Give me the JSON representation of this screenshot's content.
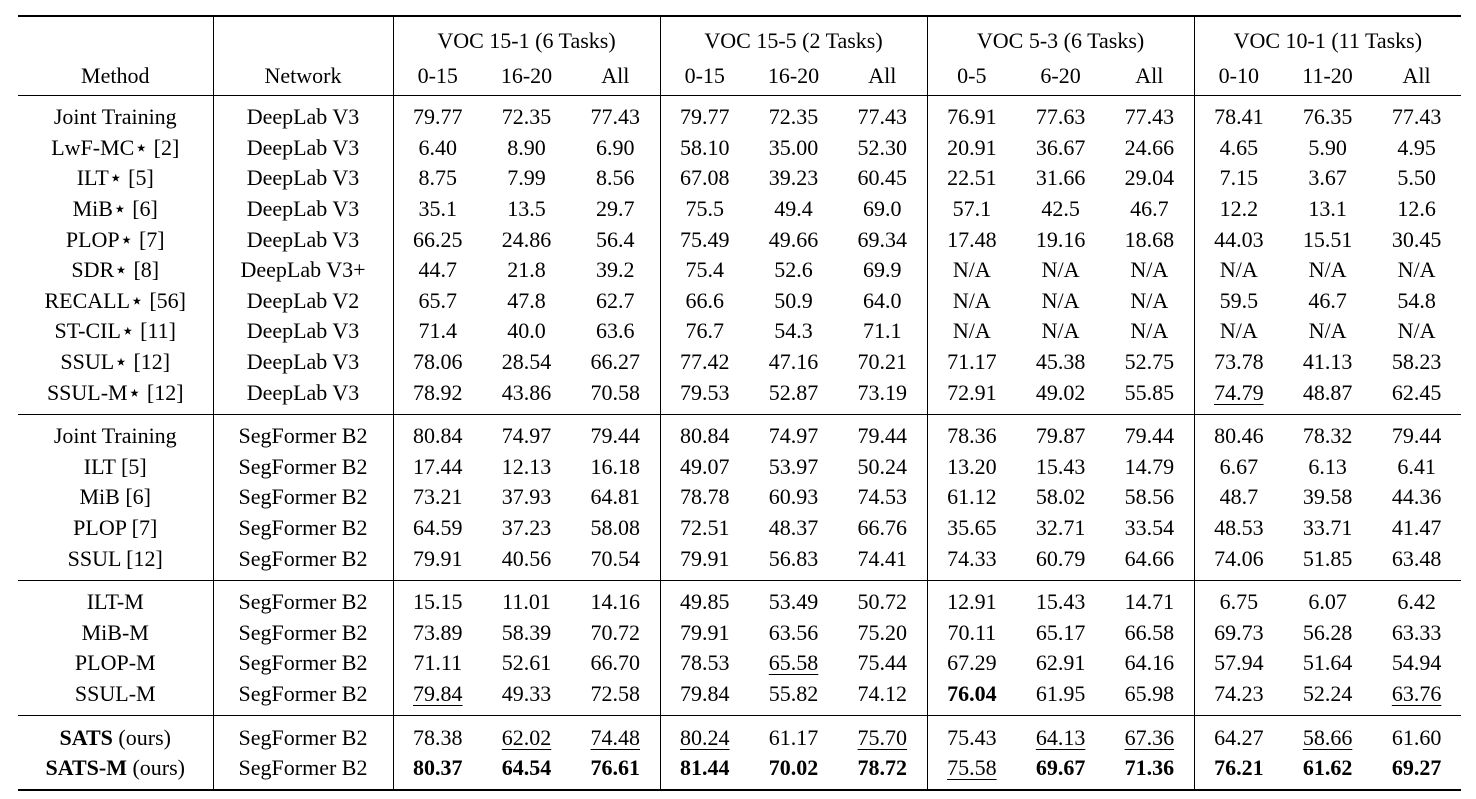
{
  "table": {
    "header": {
      "group_titles": [
        "VOC 15-1 (6 Tasks)",
        "VOC 15-5 (2 Tasks)",
        "VOC 5-3 (6 Tasks)",
        "VOC 10-1 (11 Tasks)"
      ],
      "columns": [
        "Method",
        "Network",
        "0-15",
        "16-20",
        "All",
        "0-15",
        "16-20",
        "All",
        "0-5",
        "6-20",
        "All",
        "0-10",
        "11-20",
        "All"
      ]
    },
    "groups": [
      [
        [
          "Joint Training",
          "DeepLab V3",
          "79.77",
          "72.35",
          "77.43",
          "79.77",
          "72.35",
          "77.43",
          "76.91",
          "77.63",
          "77.43",
          "78.41",
          "76.35",
          "77.43"
        ],
        [
          "LwF-MC⋆ [2]",
          "DeepLab V3",
          "6.40",
          "8.90",
          "6.90",
          "58.10",
          "35.00",
          "52.30",
          "20.91",
          "36.67",
          "24.66",
          "4.65",
          "5.90",
          "4.95"
        ],
        [
          "ILT⋆ [5]",
          "DeepLab V3",
          "8.75",
          "7.99",
          "8.56",
          "67.08",
          "39.23",
          "60.45",
          "22.51",
          "31.66",
          "29.04",
          "7.15",
          "3.67",
          "5.50"
        ],
        [
          "MiB⋆ [6]",
          "DeepLab V3",
          "35.1",
          "13.5",
          "29.7",
          "75.5",
          "49.4",
          "69.0",
          "57.1",
          "42.5",
          "46.7",
          "12.2",
          "13.1",
          "12.6"
        ],
        [
          "PLOP⋆ [7]",
          "DeepLab V3",
          "66.25",
          "24.86",
          "56.4",
          "75.49",
          "49.66",
          "69.34",
          "17.48",
          "19.16",
          "18.68",
          "44.03",
          "15.51",
          "30.45"
        ],
        [
          "SDR⋆ [8]",
          "DeepLab V3+",
          "44.7",
          "21.8",
          "39.2",
          "75.4",
          "52.6",
          "69.9",
          "N/A",
          "N/A",
          "N/A",
          "N/A",
          "N/A",
          "N/A"
        ],
        [
          "RECALL⋆ [56]",
          "DeepLab V2",
          "65.7",
          "47.8",
          "62.7",
          "66.6",
          "50.9",
          "64.0",
          "N/A",
          "N/A",
          "N/A",
          "59.5",
          "46.7",
          "54.8"
        ],
        [
          "ST-CIL⋆ [11]",
          "DeepLab V3",
          "71.4",
          "40.0",
          "63.6",
          "76.7",
          "54.3",
          "71.1",
          "N/A",
          "N/A",
          "N/A",
          "N/A",
          "N/A",
          "N/A"
        ],
        [
          "SSUL⋆ [12]",
          "DeepLab V3",
          "78.06",
          "28.54",
          "66.27",
          "77.42",
          "47.16",
          "70.21",
          "71.17",
          "45.38",
          "52.75",
          "73.78",
          "41.13",
          "58.23"
        ],
        [
          "SSUL-M⋆ [12]",
          "DeepLab V3",
          "78.92",
          "43.86",
          "70.58",
          "79.53",
          "52.87",
          "73.19",
          "72.91",
          "49.02",
          "55.85",
          {
            "text": "74.79",
            "underline": true
          },
          "48.87",
          "62.45"
        ]
      ],
      [
        [
          "Joint Training",
          "SegFormer B2",
          "80.84",
          "74.97",
          "79.44",
          "80.84",
          "74.97",
          "79.44",
          "78.36",
          "79.87",
          "79.44",
          "80.46",
          "78.32",
          "79.44"
        ],
        [
          "ILT [5]",
          "SegFormer B2",
          "17.44",
          "12.13",
          "16.18",
          "49.07",
          "53.97",
          "50.24",
          "13.20",
          "15.43",
          "14.79",
          "6.67",
          "6.13",
          "6.41"
        ],
        [
          "MiB [6]",
          "SegFormer B2",
          "73.21",
          "37.93",
          "64.81",
          "78.78",
          "60.93",
          "74.53",
          "61.12",
          "58.02",
          "58.56",
          "48.7",
          "39.58",
          "44.36"
        ],
        [
          "PLOP [7]",
          "SegFormer B2",
          "64.59",
          "37.23",
          "58.08",
          "72.51",
          "48.37",
          "66.76",
          "35.65",
          "32.71",
          "33.54",
          "48.53",
          "33.71",
          "41.47"
        ],
        [
          "SSUL [12]",
          "SegFormer B2",
          "79.91",
          "40.56",
          "70.54",
          "79.91",
          "56.83",
          "74.41",
          "74.33",
          "60.79",
          "64.66",
          "74.06",
          "51.85",
          "63.48"
        ]
      ],
      [
        [
          "ILT-M",
          "SegFormer B2",
          "15.15",
          "11.01",
          "14.16",
          "49.85",
          "53.49",
          "50.72",
          "12.91",
          "15.43",
          "14.71",
          "6.75",
          "6.07",
          "6.42"
        ],
        [
          "MiB-M",
          "SegFormer B2",
          "73.89",
          "58.39",
          "70.72",
          "79.91",
          "63.56",
          "75.20",
          "70.11",
          "65.17",
          "66.58",
          "69.73",
          "56.28",
          "63.33"
        ],
        [
          "PLOP-M",
          "SegFormer B2",
          "71.11",
          "52.61",
          "66.70",
          "78.53",
          {
            "text": "65.58",
            "underline": true
          },
          "75.44",
          "67.29",
          "62.91",
          "64.16",
          "57.94",
          "51.64",
          "54.94"
        ],
        [
          "SSUL-M",
          "SegFormer B2",
          {
            "text": "79.84",
            "underline": true
          },
          "49.33",
          "72.58",
          "79.84",
          "55.82",
          "74.12",
          {
            "text": "76.04",
            "bold": true
          },
          "61.95",
          "65.98",
          "74.23",
          "52.24",
          {
            "text": "63.76",
            "underline": true
          }
        ]
      ],
      [
        [
          {
            "text": "SATS",
            "bold": true,
            "suffix": "(ours)"
          },
          "SegFormer B2",
          "78.38",
          {
            "text": "62.02",
            "underline": true
          },
          {
            "text": "74.48",
            "underline": true
          },
          {
            "text": "80.24",
            "underline": true
          },
          "61.17",
          {
            "text": "75.70",
            "underline": true
          },
          "75.43",
          {
            "text": "64.13",
            "underline": true
          },
          {
            "text": "67.36",
            "underline": true
          },
          "64.27",
          {
            "text": "58.66",
            "underline": true
          },
          "61.60"
        ],
        [
          {
            "text": "SATS-M",
            "bold": true,
            "suffix": "(ours)"
          },
          "SegFormer B2",
          {
            "text": "80.37",
            "bold": true
          },
          {
            "text": "64.54",
            "bold": true
          },
          {
            "text": "76.61",
            "bold": true
          },
          {
            "text": "81.44",
            "bold": true
          },
          {
            "text": "70.02",
            "bold": true
          },
          {
            "text": "78.72",
            "bold": true
          },
          {
            "text": "75.58",
            "underline": true
          },
          {
            "text": "69.67",
            "bold": true
          },
          {
            "text": "71.36",
            "bold": true
          },
          {
            "text": "76.21",
            "bold": true
          },
          {
            "text": "61.62",
            "bold": true
          },
          {
            "text": "69.27",
            "bold": true
          }
        ]
      ]
    ]
  }
}
